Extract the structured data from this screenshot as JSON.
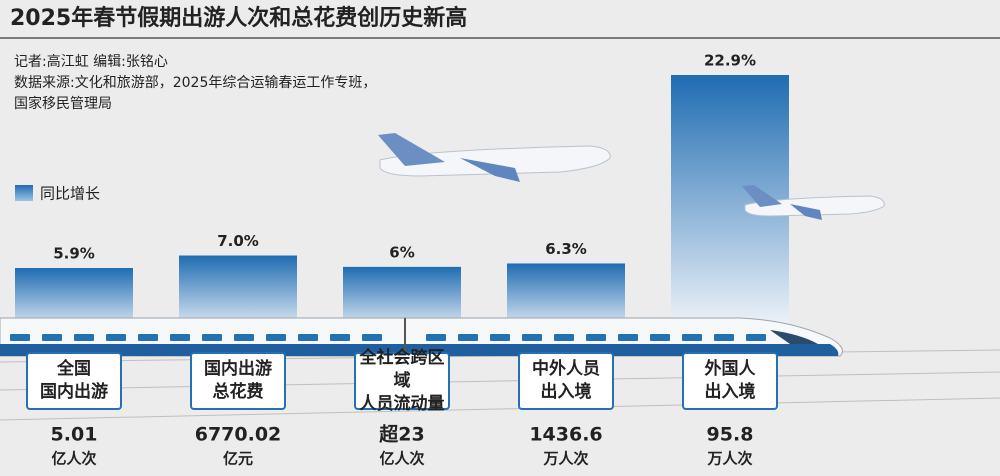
{
  "header": {
    "title": "2025年春节假期出游人次和总花费创历史新高",
    "credits": [
      "记者:高江虹  编辑:张铭心",
      "数据来源:文化和旅游部，2025年综合运输春运工作专班，",
      "国家移民管理局"
    ]
  },
  "chart_data": {
    "type": "bar",
    "categories": [
      "全国\n国内出游",
      "国内出游\n总花费",
      "全社会跨区域\n人员流动量",
      "中外人员\n出入境",
      "外国人\n出入境"
    ],
    "series": [
      {
        "name": "同比增长",
        "color": "#2470b3",
        "values": [
          5.9,
          7.0,
          6,
          6.3,
          22.9
        ],
        "value_labels": [
          "5.9%",
          "7.0%",
          "6%",
          "6.3%",
          "22.9%"
        ]
      }
    ],
    "totals": [
      "5.01",
      "6770.02",
      "超23",
      "1436.6",
      "95.8"
    ],
    "units": [
      "亿人次",
      "亿元",
      "亿人次",
      "万人次",
      "万人次"
    ]
  }
}
